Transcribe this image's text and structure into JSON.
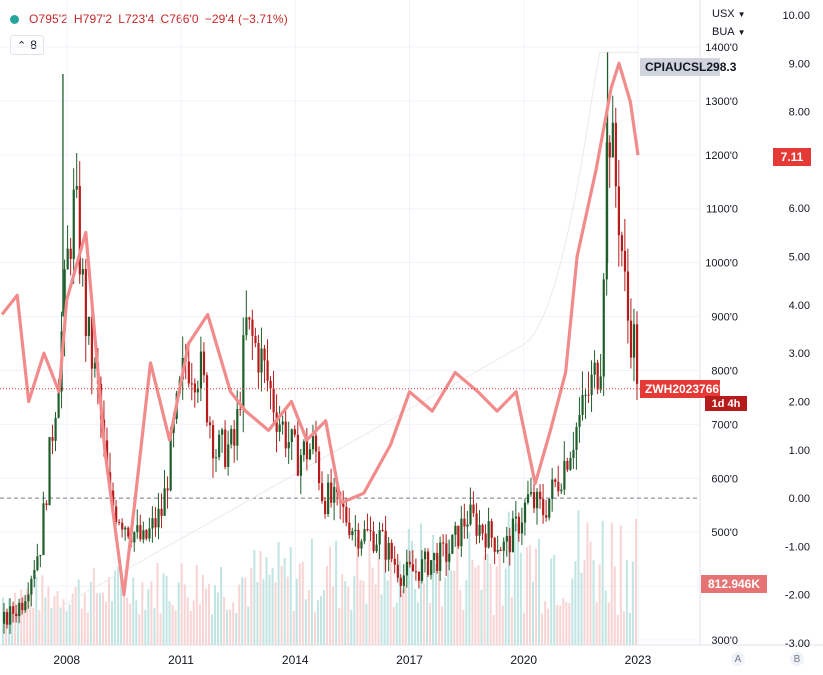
{
  "header": {
    "open": "O795'2",
    "high": "H797'2",
    "low": "L723'4",
    "close": "C766'0",
    "change": "−29'4 (−3.71%)",
    "interval_label": "8"
  },
  "scale_selectors": {
    "currency": "USX",
    "unit": "BUA"
  },
  "colors": {
    "up": "#26a69a",
    "candle_up": "#1e5e2a",
    "candle_down": "#b71c1c",
    "cpi_line": "#f28b8b",
    "price_tag": "#e53935",
    "cpi_tag": "#d1d4dc"
  },
  "icons": {
    "interval": "eye-icon",
    "selector": "chevron-down-icon"
  },
  "tags": {
    "cpi_name": "CPIAUCSL",
    "cpi_value": "298.3",
    "right_value": "7.11",
    "symbol": "ZWH2023",
    "symbol_price": "766'0",
    "countdown": "1d 4h",
    "volume": "812.946K"
  },
  "corner_buttons": {
    "auto": "A",
    "base": "B"
  },
  "chart_data": {
    "type": "candlestick",
    "x_axis": {
      "ticks": [
        "2008",
        "2011",
        "2014",
        "2017",
        "2020",
        "2023"
      ]
    },
    "left_axis_price": {
      "ticks": [
        "1400'0",
        "1300'0",
        "1200'0",
        "1100'0",
        "1000'0",
        "900'0",
        "800'0",
        "700'0",
        "600'0",
        "500'0",
        "400'0",
        "300'0"
      ],
      "range": [
        300,
        1400
      ]
    },
    "right_axis": {
      "ticks": [
        "10.00",
        "9.00",
        "8.00",
        "7.00",
        "6.00",
        "5.00",
        "4.00",
        "3.00",
        "2.00",
        "1.00",
        "0.00",
        "-1.00",
        "-2.00",
        "-3.00"
      ],
      "range": [
        -3,
        10
      ]
    },
    "price_series": {
      "name": "ZWH2023",
      "keypoints": [
        [
          2006.3,
          330
        ],
        [
          2006.8,
          370
        ],
        [
          2007.3,
          480
        ],
        [
          2007.8,
          820
        ],
        [
          2008.0,
          1000
        ],
        [
          2008.2,
          1120
        ],
        [
          2008.5,
          880
        ],
        [
          2008.8,
          760
        ],
        [
          2009.1,
          560
        ],
        [
          2009.5,
          520
        ],
        [
          2010.0,
          480
        ],
        [
          2010.5,
          540
        ],
        [
          2010.8,
          690
        ],
        [
          2011.1,
          820
        ],
        [
          2011.5,
          800
        ],
        [
          2011.9,
          650
        ],
        [
          2012.4,
          660
        ],
        [
          2012.7,
          880
        ],
        [
          2013.1,
          820
        ],
        [
          2013.5,
          720
        ],
        [
          2014.0,
          640
        ],
        [
          2014.5,
          660
        ],
        [
          2014.7,
          570
        ],
        [
          2015.2,
          540
        ],
        [
          2015.6,
          500
        ],
        [
          2016.2,
          490
        ],
        [
          2016.8,
          420
        ],
        [
          2017.2,
          430
        ],
        [
          2017.6,
          450
        ],
        [
          2018.0,
          460
        ],
        [
          2018.5,
          530
        ],
        [
          2019.0,
          500
        ],
        [
          2019.5,
          470
        ],
        [
          2019.8,
          510
        ],
        [
          2020.1,
          560
        ],
        [
          2020.5,
          540
        ],
        [
          2020.9,
          600
        ],
        [
          2021.3,
          680
        ],
        [
          2021.7,
          760
        ],
        [
          2022.0,
          820
        ],
        [
          2022.2,
          1280
        ],
        [
          2022.5,
          1080
        ],
        [
          2022.7,
          900
        ],
        [
          2022.9,
          850
        ],
        [
          2023.0,
          766
        ]
      ]
    },
    "cpi_change_series": {
      "name": "CPIAUCSL",
      "keypoints": [
        [
          2006.3,
          3.8
        ],
        [
          2006.7,
          4.2
        ],
        [
          2007.0,
          2.0
        ],
        [
          2007.4,
          3.0
        ],
        [
          2007.8,
          2.2
        ],
        [
          2008.0,
          4.1
        ],
        [
          2008.5,
          5.5
        ],
        [
          2009.0,
          1.0
        ],
        [
          2009.5,
          -2.0
        ],
        [
          2009.8,
          0.0
        ],
        [
          2010.2,
          2.8
        ],
        [
          2010.7,
          1.2
        ],
        [
          2011.2,
          3.2
        ],
        [
          2011.7,
          3.8
        ],
        [
          2012.3,
          2.2
        ],
        [
          2012.7,
          1.8
        ],
        [
          2013.3,
          1.4
        ],
        [
          2013.9,
          2.0
        ],
        [
          2014.3,
          1.2
        ],
        [
          2014.8,
          1.6
        ],
        [
          2015.2,
          -0.1
        ],
        [
          2015.8,
          0.1
        ],
        [
          2016.5,
          1.1
        ],
        [
          2017.0,
          2.2
        ],
        [
          2017.6,
          1.8
        ],
        [
          2018.2,
          2.6
        ],
        [
          2018.8,
          2.2
        ],
        [
          2019.3,
          1.8
        ],
        [
          2019.8,
          2.2
        ],
        [
          2020.3,
          0.3
        ],
        [
          2020.7,
          1.4
        ],
        [
          2021.1,
          2.6
        ],
        [
          2021.4,
          5.0
        ],
        [
          2021.9,
          6.8
        ],
        [
          2022.3,
          8.5
        ],
        [
          2022.5,
          9.0
        ],
        [
          2022.8,
          8.2
        ],
        [
          2023.0,
          7.1
        ]
      ]
    },
    "volume_series": {
      "name": "Volume",
      "last": "812.946K"
    }
  }
}
